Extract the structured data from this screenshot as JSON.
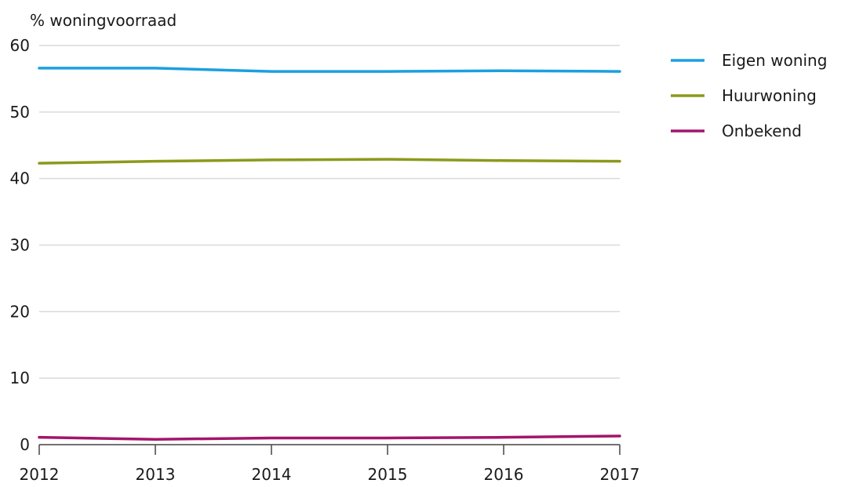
{
  "chart_data": {
    "type": "line",
    "title": "",
    "xlabel": "",
    "ylabel": "% woningvoorraad",
    "x": [
      2012,
      2013,
      2014,
      2015,
      2016,
      2017
    ],
    "x_tick_labels": [
      "2012",
      "2013",
      "2014",
      "2015",
      "2016",
      "2017"
    ],
    "y_ticks": [
      0,
      10,
      20,
      30,
      40,
      50,
      60
    ],
    "y_tick_labels": [
      "0",
      "10",
      "20",
      "30",
      "40",
      "50",
      "60"
    ],
    "xlim": [
      2012,
      2017
    ],
    "ylim": [
      0,
      60
    ],
    "grid": true,
    "legend_position": "top-right",
    "series": [
      {
        "name": "Eigen woning",
        "color": "#1aa0e0",
        "values": [
          56.6,
          56.6,
          56.1,
          56.1,
          56.2,
          56.1
        ]
      },
      {
        "name": "Huurwoning",
        "color": "#8c9a1c",
        "values": [
          42.3,
          42.6,
          42.8,
          42.9,
          42.7,
          42.6
        ]
      },
      {
        "name": "Onbekend",
        "color": "#a3156b",
        "values": [
          1.1,
          0.8,
          1.0,
          1.0,
          1.1,
          1.3
        ]
      }
    ]
  }
}
